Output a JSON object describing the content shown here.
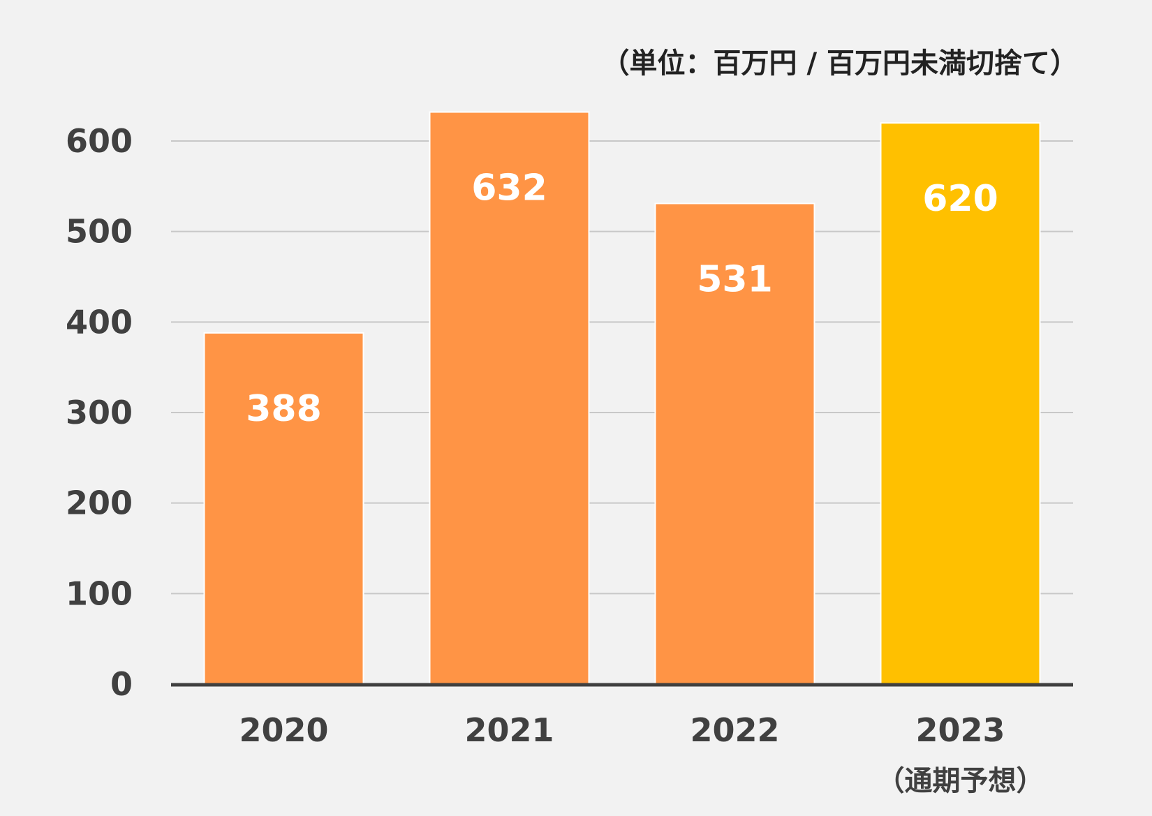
{
  "chart_data": {
    "type": "bar",
    "unit_note": "（単位：百万円 / 百万円未満切捨て）",
    "categories": [
      "2020",
      "2021",
      "2022",
      "2023"
    ],
    "category_sublabels": [
      "",
      "",
      "",
      "（通期予想）"
    ],
    "values": [
      388,
      632,
      531,
      620
    ],
    "data_labels": [
      "388",
      "632",
      "531",
      "620"
    ],
    "ylim": [
      0,
      600
    ],
    "yticks": [
      0,
      100,
      200,
      300,
      400,
      500,
      600
    ],
    "grid": true,
    "bar_colors": [
      "#ff9445",
      "#ff9445",
      "#ff9445",
      "#ffc000"
    ]
  }
}
